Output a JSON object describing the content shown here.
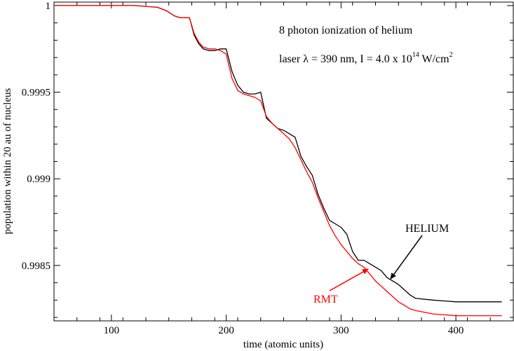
{
  "chart_data": {
    "type": "line",
    "xlabel": "time (atomic units)",
    "ylabel": "population within 20 au of nucleus",
    "xlim": [
      50,
      450
    ],
    "ylim": [
      0.99818,
      1.00002
    ],
    "x_ticks": [
      100,
      200,
      300,
      400
    ],
    "x_tick_labels": [
      "100",
      "200",
      "300",
      "400"
    ],
    "y_ticks": [
      0.9985,
      0.999,
      0.9995,
      1.0
    ],
    "y_tick_labels": [
      "0.9985",
      "0.999",
      "0.9995",
      "1"
    ],
    "grid": false,
    "annotation": {
      "line1": "8 photon ionization of helium",
      "line2_prefix": "laser λ = 390 nm,  I = 4.0 x 10",
      "line2_exp": "14",
      "line2_unit": " W/cm",
      "line2_unit_exp": "2"
    },
    "series": [
      {
        "name": "HELIUM",
        "color": "#000000",
        "x": [
          50,
          100,
          120,
          140,
          148,
          155,
          160,
          168,
          172,
          176,
          180,
          185,
          190,
          195,
          200,
          205,
          210,
          215,
          220,
          225,
          230,
          235,
          240,
          245,
          250,
          255,
          260,
          265,
          270,
          275,
          280,
          285,
          290,
          295,
          300,
          305,
          310,
          315,
          320,
          325,
          330,
          335,
          340,
          345,
          350,
          355,
          360,
          365,
          380,
          400,
          420,
          440
        ],
        "y": [
          1.0,
          1.0,
          1.0,
          0.99999,
          0.99997,
          0.99994,
          0.99993,
          0.99993,
          0.99983,
          0.99978,
          0.99975,
          0.99974,
          0.99974,
          0.99975,
          0.99975,
          0.99962,
          0.99954,
          0.9995,
          0.99949,
          0.99949,
          0.9995,
          0.99935,
          0.99932,
          0.99929,
          0.99928,
          0.99926,
          0.99924,
          0.99913,
          0.99907,
          0.99902,
          0.99891,
          0.99883,
          0.99876,
          0.99874,
          0.99872,
          0.99868,
          0.99858,
          0.99853,
          0.99853,
          0.99851,
          0.99849,
          0.99847,
          0.99843,
          0.99841,
          0.99839,
          0.99836,
          0.99833,
          0.99831,
          0.9983,
          0.99829,
          0.99829,
          0.99829
        ]
      },
      {
        "name": "RMT",
        "color": "#ff0000",
        "x": [
          50,
          100,
          120,
          140,
          148,
          155,
          160,
          168,
          172,
          176,
          180,
          185,
          190,
          195,
          200,
          205,
          210,
          215,
          220,
          225,
          230,
          235,
          240,
          245,
          250,
          255,
          260,
          265,
          270,
          275,
          280,
          285,
          290,
          295,
          300,
          305,
          310,
          315,
          320,
          325,
          330,
          335,
          340,
          345,
          350,
          355,
          360,
          365,
          380,
          400,
          420,
          440
        ],
        "y": [
          1.0,
          1.0,
          1.0,
          0.99999,
          0.99997,
          0.99994,
          0.99993,
          0.99993,
          0.99984,
          0.99979,
          0.99976,
          0.99975,
          0.99975,
          0.99974,
          0.99972,
          0.99958,
          0.99951,
          0.99949,
          0.99948,
          0.99947,
          0.99945,
          0.99936,
          0.99932,
          0.99929,
          0.99926,
          0.99923,
          0.99918,
          0.99911,
          0.99904,
          0.99898,
          0.99889,
          0.99881,
          0.99873,
          0.99867,
          0.99862,
          0.99858,
          0.99854,
          0.99851,
          0.99849,
          0.99845,
          0.99841,
          0.99838,
          0.99835,
          0.99832,
          0.99829,
          0.99827,
          0.99825,
          0.99824,
          0.99822,
          0.99821,
          0.99821,
          0.99821
        ]
      }
    ],
    "labels": [
      {
        "text": "HELIUM",
        "color": "#000000"
      },
      {
        "text": "RMT",
        "color": "#ff0000"
      }
    ]
  }
}
